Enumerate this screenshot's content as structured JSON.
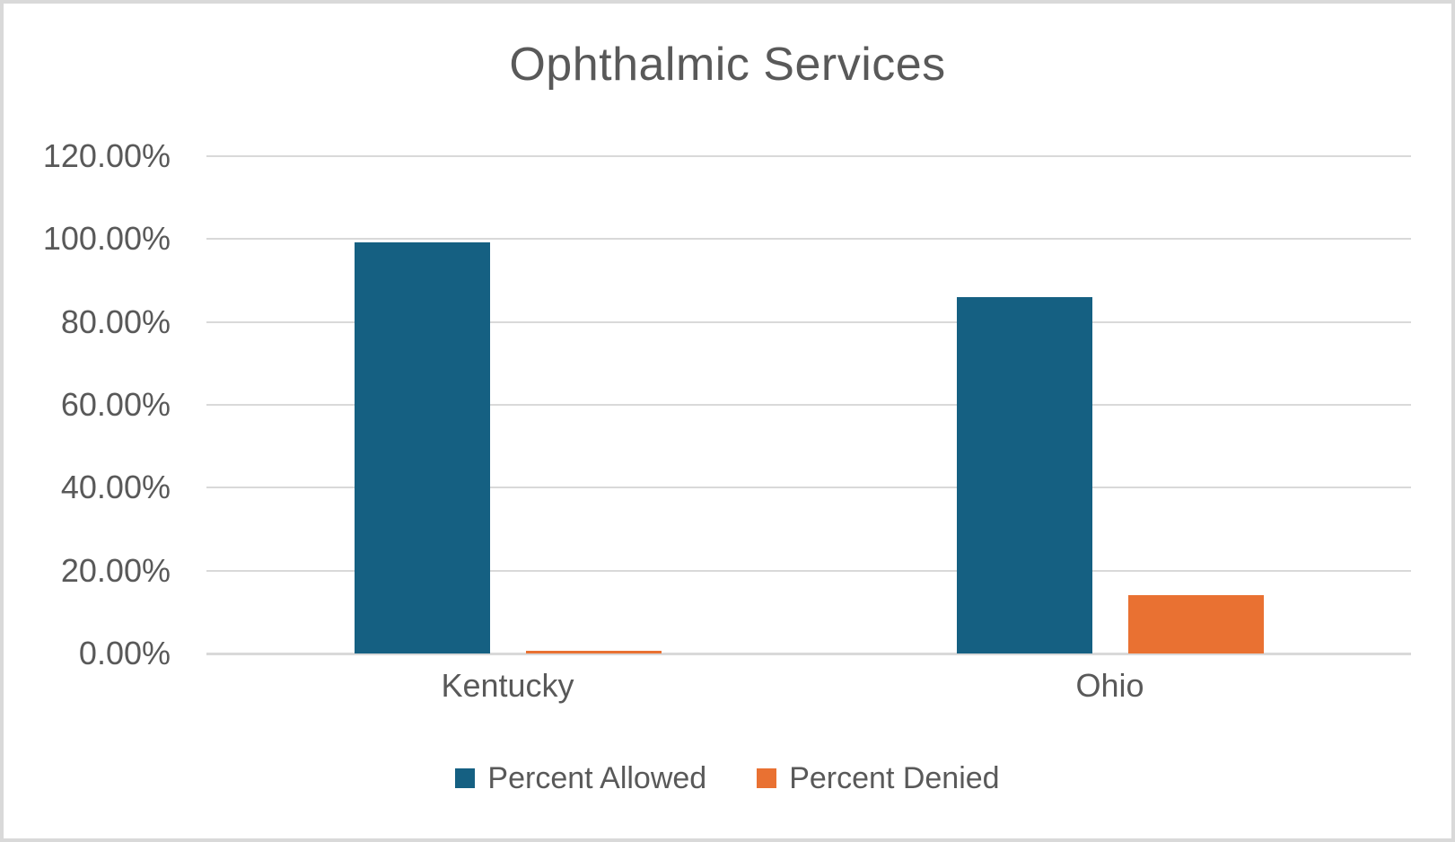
{
  "chart_data": {
    "type": "bar",
    "title": "Ophthalmic Services",
    "categories": [
      "Kentucky",
      "Ohio"
    ],
    "series": [
      {
        "name": "Percent Allowed",
        "color": "#156082",
        "values": [
          99.3,
          86.0
        ]
      },
      {
        "name": "Percent Denied",
        "color": "#E97132",
        "values": [
          0.7,
          14.0
        ]
      }
    ],
    "y_axis": {
      "min": 0,
      "max": 120,
      "ticks": [
        {
          "label": "120.00%",
          "value": 120
        },
        {
          "label": "100.00%",
          "value": 100
        },
        {
          "label": "80.00%",
          "value": 80
        },
        {
          "label": "60.00%",
          "value": 60
        },
        {
          "label": "40.00%",
          "value": 40
        },
        {
          "label": "20.00%",
          "value": 20
        },
        {
          "label": "0.00%",
          "value": 0
        }
      ]
    },
    "grid": true,
    "legend_position": "bottom"
  },
  "colors": {
    "background": "#FFFFFF",
    "frame_border": "#D9D9D9",
    "gridline": "#D9D9D9",
    "axis_line": "#D9D9D9",
    "text": "#595959",
    "series_allowed": "#156082",
    "series_denied": "#E97132"
  }
}
